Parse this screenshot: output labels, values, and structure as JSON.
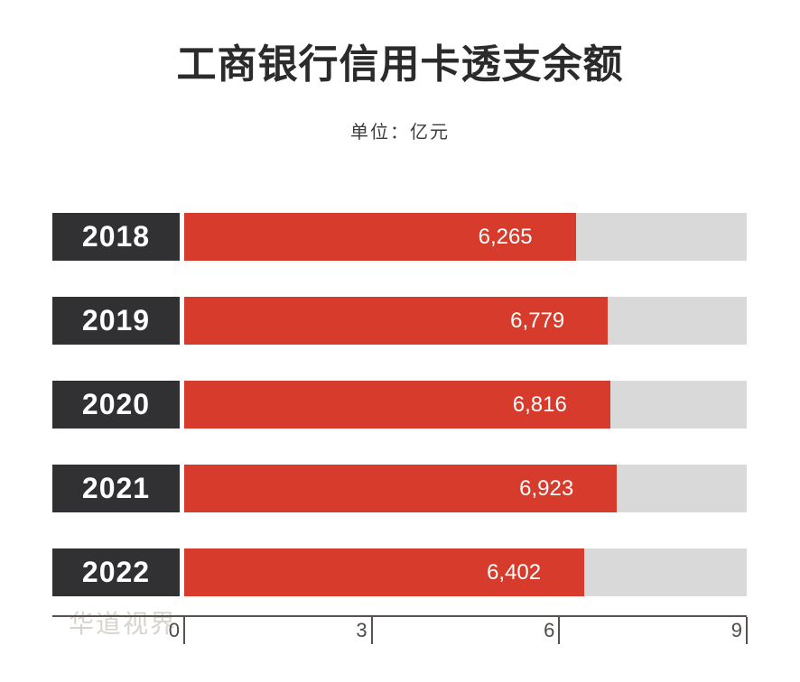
{
  "title": "工商银行信用卡透支余额",
  "subtitle": "单位：亿元",
  "watermark": "华道视界",
  "chart_data": {
    "type": "bar",
    "orientation": "horizontal",
    "title": "工商银行信用卡透支余额",
    "unit_label": "单位：亿元",
    "categories": [
      "2018",
      "2019",
      "2020",
      "2021",
      "2022"
    ],
    "values": [
      6265,
      6779,
      6816,
      6923,
      6402
    ],
    "value_labels": [
      "6,265",
      "6,779",
      "6,816",
      "6,923",
      "6,402"
    ],
    "xlim": [
      0,
      9000
    ],
    "axis_ticks": [
      {
        "label": "0",
        "value": 0
      },
      {
        "label": "3",
        "value": 3000
      },
      {
        "label": "6",
        "value": 6000
      },
      {
        "label": "9",
        "value": 9000
      }
    ],
    "grid": false,
    "legend": "none",
    "colors": {
      "bar": "#d63b2b",
      "track": "#d9d9d9",
      "category_box": "#313134",
      "category_text": "#ffffff",
      "value_text": "#ffffff",
      "axis": "#59514d",
      "title_text": "#2b2b2b",
      "watermark_text": "#d8d3ce"
    }
  }
}
